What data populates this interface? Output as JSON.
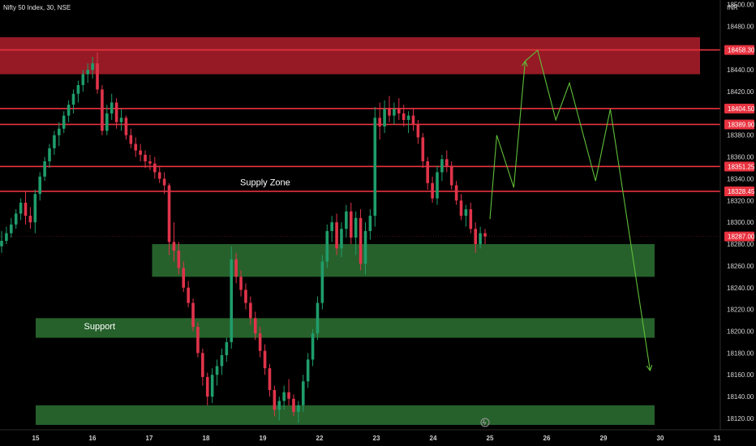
{
  "header": {
    "title": "Nifty 50 Index, 30, NSE",
    "currency": "INR"
  },
  "colors": {
    "up": "#1f9d6b",
    "down": "#e0344a",
    "supply_zone": "#b01e2c",
    "demand_zone": "#2a6b30",
    "level_line": "#e8323f",
    "projection": "#5fbf3a",
    "badge_bg": "#e8323f",
    "badge_neutral": "#3a3a3a"
  },
  "chart_data": {
    "type": "candlestick",
    "symbol": "Nifty 50 Index",
    "timeframe": "30",
    "exchange": "NSE",
    "ylim": [
      18112,
      18504
    ],
    "y_ticks": [
      18500,
      18480,
      18440,
      18420,
      18380,
      18360,
      18340,
      18320,
      18300,
      18280,
      18260,
      18240,
      18220,
      18200,
      18180,
      18160,
      18140,
      18120
    ],
    "y_tick_labels": [
      "18500.00",
      "18480.00",
      "18440.00",
      "18420.00",
      "18380.00",
      "18360.00",
      "18340.00",
      "18320.00",
      "18300.00",
      "18280.00",
      "18260.00",
      "18240.00",
      "18220.00",
      "18200.00",
      "18180.00",
      "18160.00",
      "18140.00",
      "18120.00"
    ],
    "x_labels": [
      "15",
      "16",
      "17",
      "18",
      "19",
      "22",
      "23",
      "24",
      "25",
      "26",
      "29",
      "30",
      "31"
    ],
    "levels": [
      {
        "value": 18458.3,
        "label": "18458.30"
      },
      {
        "value": 18404.5,
        "label": "18404.50"
      },
      {
        "value": 18389.9,
        "label": "18389.90"
      },
      {
        "value": 18351.25,
        "label": "18351.25"
      },
      {
        "value": 18328.45,
        "label": "18328.45"
      }
    ],
    "last_price": {
      "value": 18287.0,
      "label": "18287.00"
    },
    "zones": [
      {
        "type": "supply",
        "top": 18470,
        "bottom": 18436,
        "x_end_session": 11.7
      },
      {
        "type": "demand",
        "top": 18280,
        "bottom": 18250,
        "x_start_session": 2.05,
        "x_end_session": 10.9
      },
      {
        "type": "demand",
        "top": 18212,
        "bottom": 18194,
        "x_start_session": 0,
        "x_end_session": 10.9
      },
      {
        "type": "demand",
        "top": 18132,
        "bottom": 18114,
        "x_start_session": 0,
        "x_end_session": 10.9
      }
    ],
    "annotations": [
      {
        "text": "Supply Zone",
        "session_x": 3.6,
        "y": 18337
      },
      {
        "text": "Support",
        "session_x": 0.85,
        "y": 18205
      }
    ],
    "projection": [
      [
        8.0,
        18303
      ],
      [
        8.12,
        18380
      ],
      [
        8.42,
        18332
      ],
      [
        8.62,
        18448
      ],
      [
        8.84,
        18458
      ],
      [
        9.16,
        18394
      ],
      [
        9.4,
        18428
      ],
      [
        9.86,
        18338
      ],
      [
        10.12,
        18404
      ],
      [
        10.82,
        18164
      ]
    ],
    "candles": [
      [
        18278,
        18292,
        18272,
        18283
      ],
      [
        18283,
        18296,
        18280,
        18290
      ],
      [
        18290,
        18304,
        18286,
        18298
      ],
      [
        18298,
        18312,
        18294,
        18308
      ],
      [
        18308,
        18322,
        18302,
        18318
      ],
      [
        18318,
        18328,
        18298,
        18306
      ],
      [
        18306,
        18314,
        18294,
        18300
      ],
      [
        18300,
        18330,
        18290,
        18326
      ],
      [
        18326,
        18346,
        18320,
        18342
      ],
      [
        18342,
        18360,
        18338,
        18356
      ],
      [
        18356,
        18372,
        18350,
        18368
      ],
      [
        18368,
        18384,
        18362,
        18380
      ],
      [
        18380,
        18392,
        18370,
        18386
      ],
      [
        18386,
        18402,
        18382,
        18398
      ],
      [
        18398,
        18412,
        18392,
        18408
      ],
      [
        18408,
        18422,
        18400,
        18418
      ],
      [
        18418,
        18430,
        18410,
        18426
      ],
      [
        18426,
        18440,
        18420,
        18436
      ],
      [
        18436,
        18446,
        18428,
        18440
      ],
      [
        18440,
        18452,
        18432,
        18446
      ],
      [
        18446,
        18456,
        18418,
        18422
      ],
      [
        18422,
        18426,
        18380,
        18384
      ],
      [
        18384,
        18408,
        18380,
        18400
      ],
      [
        18400,
        18418,
        18394,
        18410
      ],
      [
        18410,
        18414,
        18386,
        18392
      ],
      [
        18392,
        18404,
        18384,
        18396
      ],
      [
        18396,
        18398,
        18376,
        18380
      ],
      [
        18380,
        18386,
        18368,
        18372
      ],
      [
        18372,
        18378,
        18360,
        18366
      ],
      [
        18366,
        18372,
        18356,
        18362
      ],
      [
        18362,
        18366,
        18350,
        18356
      ],
      [
        18356,
        18362,
        18348,
        18354
      ],
      [
        18354,
        18360,
        18340,
        18346
      ],
      [
        18346,
        18352,
        18336,
        18340
      ],
      [
        18340,
        18346,
        18326,
        18334
      ],
      [
        18334,
        18336,
        18270,
        18282
      ],
      [
        18282,
        18300,
        18264,
        18274
      ],
      [
        18274,
        18282,
        18252,
        18258
      ],
      [
        18258,
        18264,
        18236,
        18240
      ],
      [
        18240,
        18246,
        18222,
        18226
      ],
      [
        18226,
        18230,
        18200,
        18204
      ],
      [
        18204,
        18208,
        18176,
        18180
      ],
      [
        18180,
        18184,
        18150,
        18158
      ],
      [
        18158,
        18162,
        18132,
        18140
      ],
      [
        18140,
        18166,
        18134,
        18160
      ],
      [
        18160,
        18174,
        18150,
        18168
      ],
      [
        18168,
        18184,
        18160,
        18178
      ],
      [
        18178,
        18194,
        18172,
        18190
      ],
      [
        18190,
        18278,
        18184,
        18266
      ],
      [
        18266,
        18272,
        18244,
        18250
      ],
      [
        18250,
        18256,
        18232,
        18238
      ],
      [
        18238,
        18244,
        18220,
        18226
      ],
      [
        18226,
        18232,
        18206,
        18212
      ],
      [
        18212,
        18218,
        18192,
        18198
      ],
      [
        18198,
        18204,
        18176,
        18182
      ],
      [
        18182,
        18188,
        18160,
        18166
      ],
      [
        18166,
        18170,
        18140,
        18146
      ],
      [
        18146,
        18150,
        18122,
        18128
      ],
      [
        18128,
        18140,
        18118,
        18136
      ],
      [
        18136,
        18150,
        18128,
        18144
      ],
      [
        18144,
        18156,
        18132,
        18138
      ],
      [
        18138,
        18142,
        18122,
        18126
      ],
      [
        18126,
        18136,
        18116,
        18132
      ],
      [
        18132,
        18160,
        18126,
        18154
      ],
      [
        18154,
        18180,
        18148,
        18174
      ],
      [
        18174,
        18202,
        18168,
        18198
      ],
      [
        18198,
        18232,
        18192,
        18226
      ],
      [
        18226,
        18270,
        18220,
        18264
      ],
      [
        18264,
        18298,
        18258,
        18292
      ],
      [
        18292,
        18306,
        18282,
        18300
      ],
      [
        18300,
        18308,
        18270,
        18276
      ],
      [
        18276,
        18300,
        18268,
        18294
      ],
      [
        18294,
        18316,
        18286,
        18310
      ],
      [
        18310,
        18318,
        18280,
        18286
      ],
      [
        18286,
        18310,
        18270,
        18304
      ],
      [
        18304,
        18312,
        18256,
        18262
      ],
      [
        18262,
        18300,
        18252,
        18292
      ],
      [
        18292,
        18312,
        18284,
        18306
      ],
      [
        18306,
        18406,
        18296,
        18396
      ],
      [
        18396,
        18410,
        18376,
        18388
      ],
      [
        18388,
        18412,
        18382,
        18404
      ],
      [
        18404,
        18416,
        18392,
        18398
      ],
      [
        18398,
        18410,
        18390,
        18404
      ],
      [
        18404,
        18414,
        18394,
        18400
      ],
      [
        18400,
        18408,
        18388,
        18394
      ],
      [
        18394,
        18402,
        18382,
        18398
      ],
      [
        18398,
        18404,
        18384,
        18390
      ],
      [
        18390,
        18394,
        18372,
        18378
      ],
      [
        18378,
        18382,
        18350,
        18356
      ],
      [
        18356,
        18360,
        18330,
        18336
      ],
      [
        18336,
        18342,
        18318,
        18322
      ],
      [
        18322,
        18352,
        18316,
        18346
      ],
      [
        18346,
        18362,
        18338,
        18358
      ],
      [
        18358,
        18366,
        18346,
        18352
      ],
      [
        18352,
        18356,
        18330,
        18334
      ],
      [
        18334,
        18338,
        18316,
        18320
      ],
      [
        18320,
        18326,
        18302,
        18306
      ],
      [
        18306,
        18316,
        18296,
        18312
      ],
      [
        18312,
        18318,
        18290,
        18294
      ],
      [
        18294,
        18300,
        18272,
        18280
      ],
      [
        18280,
        18296,
        18276,
        18290
      ],
      [
        18290,
        18294,
        18280,
        18287
      ]
    ]
  }
}
